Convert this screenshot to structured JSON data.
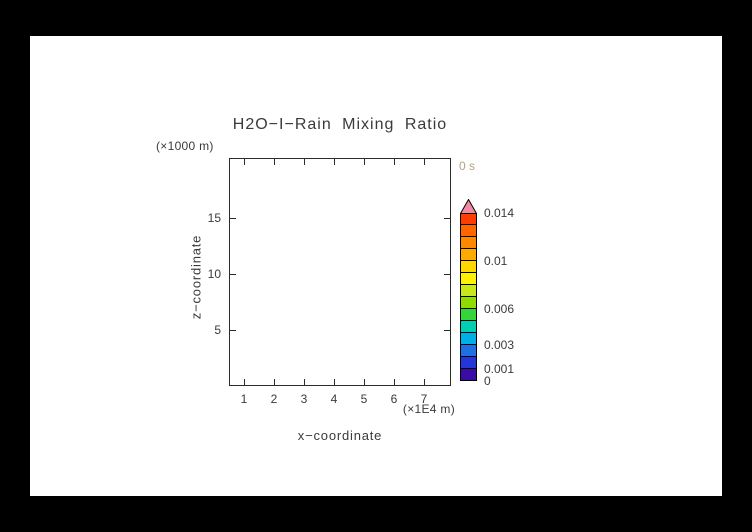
{
  "frame": {
    "background_color": "#000000",
    "canvas_color": "#ffffff"
  },
  "chart_data": {
    "type": "heatmap",
    "title": "H2O−I−Rain Mixing Ratio",
    "time_label": "0 s",
    "xlabel": "x−coordinate",
    "x_axis_unit": "(×1E4 m)",
    "ylabel": "z−coordinate",
    "y_axis_unit": "(×1000 m)",
    "x_ticks": [
      1,
      2,
      3,
      4,
      5,
      6,
      7
    ],
    "y_ticks": [
      5,
      10,
      15
    ],
    "xlim": [
      0.5,
      7.9
    ],
    "ylim": [
      0,
      20.4
    ],
    "grid": false,
    "field_note": "field is uniformly zero at t = 0 s — plot interior is empty white, no contour fill drawn",
    "text_color": "#3a3a3a",
    "time_label_color": "#b3a182",
    "colorbar": {
      "min": 0,
      "box_step": 0.001,
      "num_boxes": 14,
      "labels": [
        {
          "text": "0",
          "value": 0
        },
        {
          "text": "0.001",
          "value": 0.001
        },
        {
          "text": "0.003",
          "value": 0.003
        },
        {
          "text": "0.006",
          "value": 0.006
        },
        {
          "text": "0.01",
          "value": 0.01
        },
        {
          "text": "0.014",
          "value": 0.014
        }
      ],
      "colors": [
        "#3a0ca3",
        "#2536d9",
        "#1e6fe0",
        "#00aee8",
        "#00d0b0",
        "#35d43a",
        "#8fdc00",
        "#c9e81a",
        "#fff200",
        "#ffd800",
        "#ffaa00",
        "#ff8800",
        "#ff6600",
        "#ff3d00"
      ],
      "over_color": "#f2899e"
    }
  }
}
